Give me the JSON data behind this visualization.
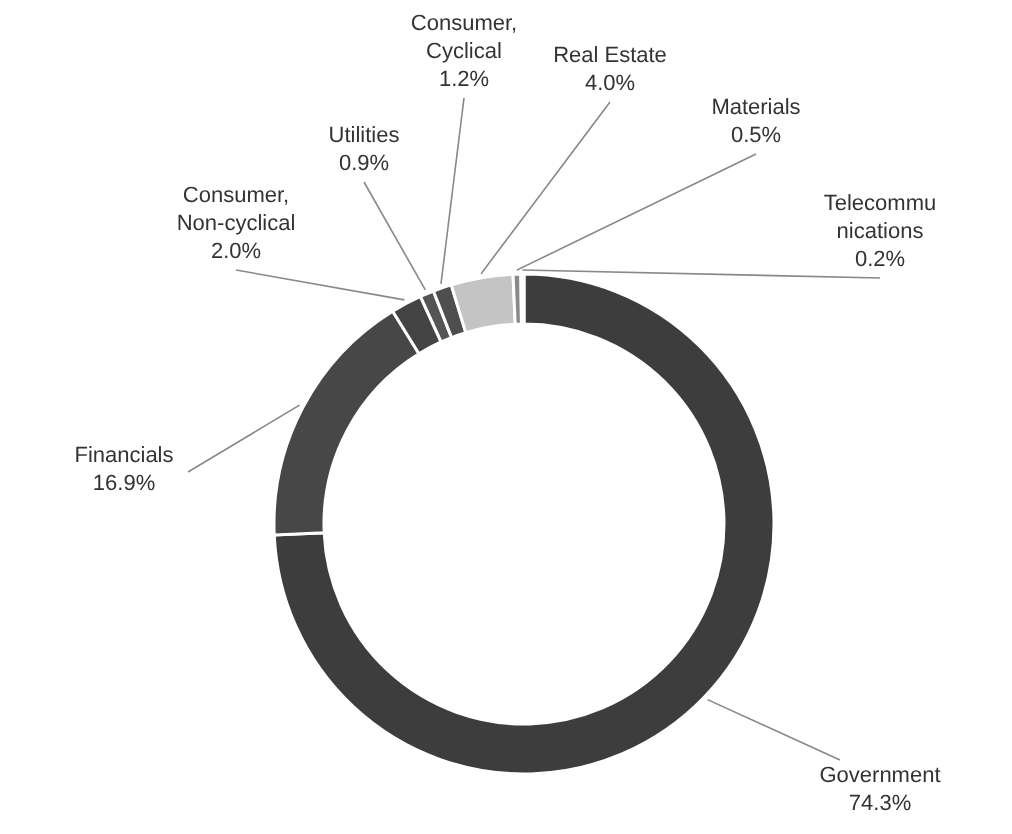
{
  "chart_data": {
    "type": "donut",
    "categories": [
      "Government",
      "Financials",
      "Consumer, Non-cyclical",
      "Utilities",
      "Consumer, Cyclical",
      "Real Estate",
      "Materials",
      "Telecommunications"
    ],
    "values": [
      74.3,
      16.9,
      2.0,
      0.9,
      1.2,
      4.0,
      0.5,
      0.2
    ],
    "value_labels": [
      "74.3%",
      "16.9%",
      "2.0%",
      "0.9%",
      "1.2%",
      "4.0%",
      "0.5%",
      "0.2%"
    ],
    "colors": [
      "#3d3d3d",
      "#474747",
      "#444444",
      "#555555",
      "#4e4e4e",
      "#c4c4c4",
      "#8a8a8a",
      "#e2e2e2"
    ]
  }
}
